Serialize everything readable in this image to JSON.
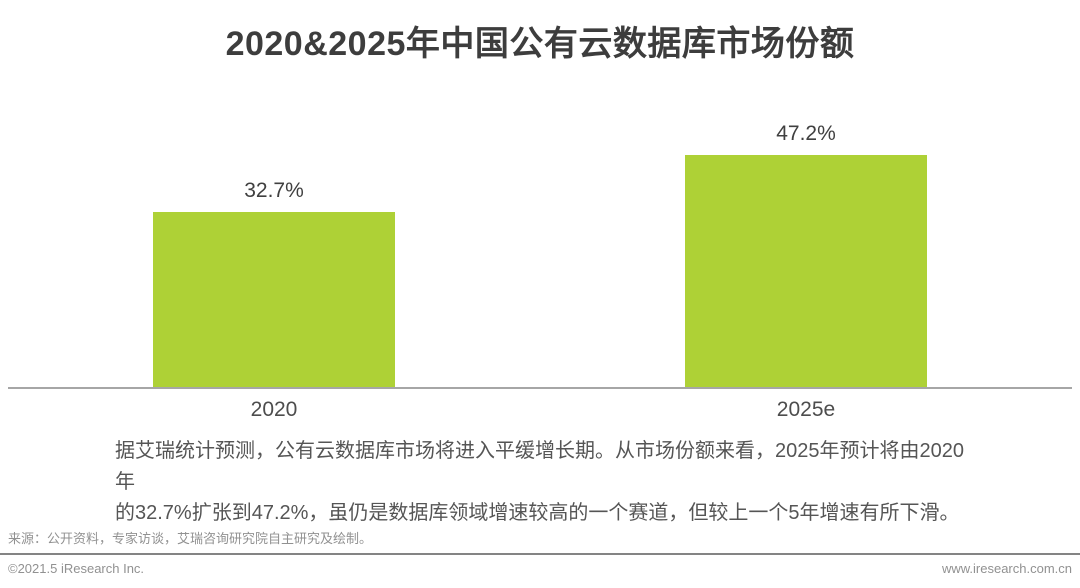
{
  "title": "2020&2025年中国公有云数据库市场份额",
  "chart_data": {
    "type": "bar",
    "categories": [
      "2020",
      "2025e"
    ],
    "values": [
      32.7,
      47.2
    ],
    "labels": [
      "32.7%",
      "47.2%"
    ],
    "title": "2020&2025年中国公有云数据库市场份额",
    "xlabel": "",
    "ylabel": "",
    "ylim": [
      0,
      50
    ],
    "grid": false,
    "legend": false,
    "bar_color": "#aed136",
    "axis_line_color": "#a6a6a6",
    "label_color": "#404040"
  },
  "annotation": {
    "lines": [
      "据艾瑞统计预测，公有云数据库市场将进入平缓增长期。从市场份额来看，2025年预计将由2020年",
      "的32.7%扩张到47.2%，虽仍是数据库领域增速较高的一个赛道，但较上一个5年增速有所下滑。"
    ]
  },
  "footer": {
    "source": "来源：公开资料，专家访谈，艾瑞咨询研究院自主研究及绘制。",
    "copyright": "©2021.5 iResearch Inc.",
    "website": "www.iresearch.com.cn"
  }
}
